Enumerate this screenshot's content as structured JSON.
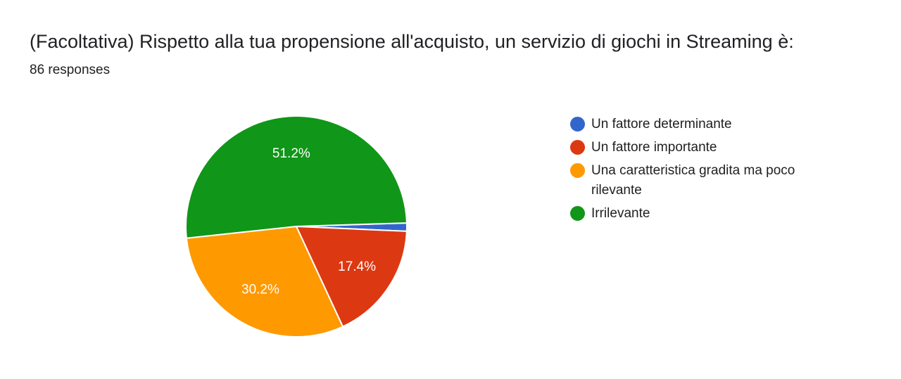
{
  "header": {
    "title": "(Facoltativa) Rispetto alla tua propensione all'acquisto, un servizio di giochi in Streaming è:",
    "responses": "86 responses"
  },
  "chart_data": {
    "type": "pie",
    "categories": [
      "Un fattore determinante",
      "Un fattore importante",
      "Una caratteristica gradita ma poco rilevante",
      "Irrilevante"
    ],
    "values": [
      1.2,
      17.4,
      30.2,
      51.2
    ],
    "colors": [
      "#3366cc",
      "#dc3912",
      "#ff9900",
      "#109618"
    ],
    "labels": [
      "",
      "17.4%",
      "30.2%",
      "51.2%"
    ],
    "legend_position": "right"
  }
}
